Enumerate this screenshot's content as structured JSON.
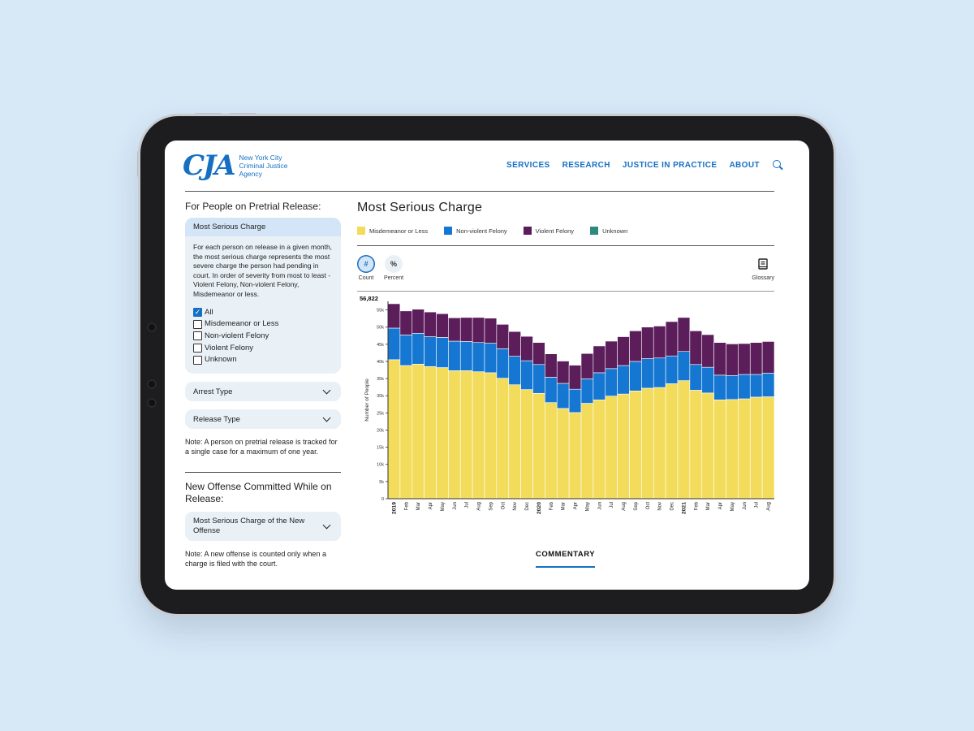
{
  "header": {
    "logo_mark": "CJA",
    "logo_lines": [
      "New York City",
      "Criminal Justice",
      "Agency"
    ],
    "nav": [
      "SERVICES",
      "RESEARCH",
      "JUSTICE IN PRACTICE",
      "ABOUT"
    ]
  },
  "sidebar": {
    "section1_title": "For People on Pretrial Release:",
    "card_title": "Most Serious Charge",
    "card_desc": "For each person on release in a given month, the most serious charge represents the most severe charge the person had pending in court. In order of severity from most to least - Violent Felony, Non-violent Felony, Misdemeanor or less.",
    "checkboxes": [
      {
        "label": "All",
        "checked": true
      },
      {
        "label": "Misdemeanor or Less",
        "checked": false
      },
      {
        "label": "Non-violent Felony",
        "checked": false
      },
      {
        "label": "Violent Felony",
        "checked": false
      },
      {
        "label": "Unknown",
        "checked": false
      }
    ],
    "dropdown_arrest": "Arrest Type",
    "dropdown_release": "Release Type",
    "note1": "Note: A person on pretrial release is tracked for a single case for a maximum of one year.",
    "section2_title": "New Offense Committed While on Release:",
    "dropdown_new_offense": "Most Serious Charge of the New Offense",
    "note2": "Note: A new offense is counted only when a charge is filed with the court."
  },
  "main": {
    "title": "Most Serious Charge",
    "toggles": {
      "count_symbol": "#",
      "count_label": "Count",
      "percent_symbol": "%",
      "percent_label": "Percent",
      "glossary_label": "Glossary"
    },
    "commentary": "COMMENTARY"
  },
  "colors": {
    "accent": "#1570c4",
    "misd": "#f3dc5c",
    "nonviolent": "#1677d2",
    "violent": "#5c1d5b",
    "unknown": "#2e8a7d"
  },
  "chart_data": {
    "type": "bar",
    "stacked": true,
    "ylabel": "Number of People",
    "max_label": "56,822",
    "ylim": [
      0,
      57500
    ],
    "yticks": [
      0,
      5000,
      10000,
      15000,
      20000,
      25000,
      30000,
      35000,
      40000,
      45000,
      50000,
      55000
    ],
    "ytick_labels": [
      "0",
      "5k",
      "10k",
      "15k",
      "20k",
      "25k",
      "30k",
      "35k",
      "40k",
      "45k",
      "50k",
      "55k"
    ],
    "categories": [
      "2019",
      "Feb",
      "Mar",
      "Apr",
      "May",
      "Jun",
      "Jul",
      "Aug",
      "Sep",
      "Oct",
      "Nov",
      "Dec",
      "2020",
      "Feb",
      "Mar",
      "Apr",
      "May",
      "Jun",
      "Jul",
      "Aug",
      "Sep",
      "Oct",
      "Nov",
      "Dec",
      "2021",
      "Feb",
      "Mar",
      "Apr",
      "May",
      "Jun",
      "Jul",
      "Aug"
    ],
    "year_categories": [
      "2019",
      "2020",
      "2021"
    ],
    "series": [
      {
        "name": "Misdemeanor or Less",
        "values": [
          40500,
          38800,
          39200,
          38500,
          38200,
          37300,
          37300,
          37000,
          36700,
          35100,
          33200,
          31800,
          30700,
          28000,
          26300,
          25100,
          27800,
          28800,
          29900,
          30500,
          31400,
          32200,
          32400,
          33500,
          34400,
          31600,
          30800,
          28800,
          28900,
          29100,
          29600,
          29700
        ]
      },
      {
        "name": "Non-violent Felony",
        "values": [
          9200,
          8900,
          9000,
          8700,
          8800,
          8600,
          8500,
          8500,
          8600,
          8600,
          8300,
          8400,
          8400,
          7400,
          7300,
          6800,
          7100,
          7900,
          8000,
          8300,
          8600,
          8600,
          8600,
          8100,
          8500,
          7500,
          7500,
          7200,
          7000,
          7100,
          6600,
          6900
        ]
      },
      {
        "name": "Violent Felony",
        "values": [
          7100,
          7000,
          7000,
          7200,
          6900,
          6800,
          7000,
          7300,
          7300,
          7100,
          7200,
          7100,
          6400,
          6800,
          6500,
          7000,
          7400,
          7800,
          8000,
          8400,
          8900,
          9200,
          9300,
          10000,
          9900,
          9800,
          9500,
          9500,
          9200,
          9000,
          9300,
          9200
        ]
      },
      {
        "name": "Unknown",
        "values": [
          0,
          0,
          0,
          0,
          0,
          0,
          0,
          0,
          0,
          0,
          0,
          0,
          0,
          0,
          0,
          0,
          0,
          0,
          0,
          0,
          0,
          0,
          0,
          0,
          0,
          0,
          0,
          0,
          0,
          0,
          0,
          0
        ]
      }
    ]
  }
}
